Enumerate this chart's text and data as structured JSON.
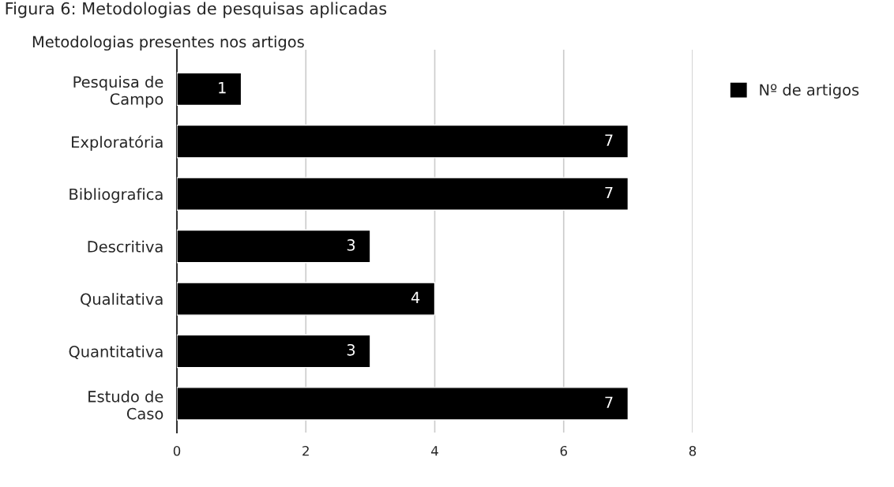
{
  "chart_data": {
    "type": "bar",
    "orientation": "horizontal",
    "title": "Metodologias presentes nos artigos",
    "annotations": [
      "Figura 6: Metodologias de pesquisas aplicadas"
    ],
    "categories": [
      "Pesquisa de\nCampo",
      "Exploratória",
      "Bibliografica",
      "Descritiva",
      "Qualitativa",
      "Quantitativa",
      "Estudo de\nCaso"
    ],
    "series": [
      {
        "name": "Nº de artigos",
        "color": "#000000",
        "values": [
          1,
          7,
          7,
          3,
          4,
          3,
          7
        ]
      }
    ],
    "xlim": [
      0,
      8
    ],
    "xticks": [
      0,
      2,
      4,
      6,
      8
    ],
    "grid": "x",
    "legend": "top right",
    "data_labels": true
  }
}
